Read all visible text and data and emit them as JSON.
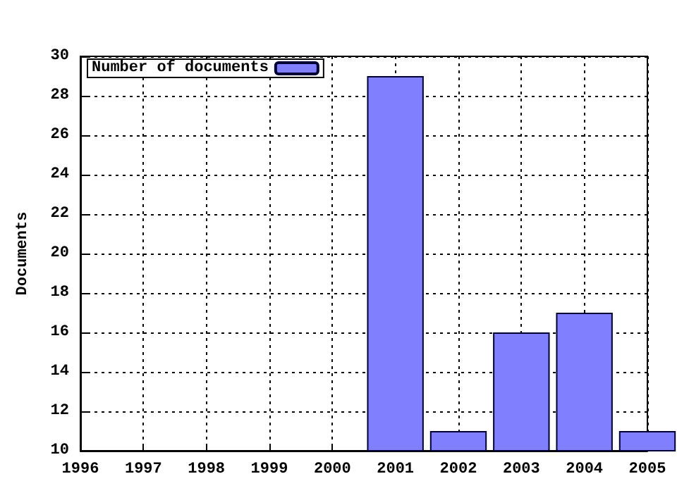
{
  "chart_data": {
    "type": "bar",
    "ylabel": "Documents",
    "x": [
      2001,
      2002,
      2003,
      2004,
      2005
    ],
    "series": [
      {
        "name": "Number of documents",
        "color": "#8080ff",
        "values": [
          29,
          11,
          16,
          17,
          11
        ]
      }
    ],
    "xlim": [
      1996,
      2005
    ],
    "xticks": [
      1996,
      1997,
      1998,
      1999,
      2000,
      2001,
      2002,
      2003,
      2004,
      2005
    ],
    "ylim": [
      10,
      30
    ],
    "yticks": [
      10,
      12,
      14,
      16,
      18,
      20,
      22,
      24,
      26,
      28,
      30
    ],
    "grid": true,
    "legend": "top left"
  }
}
